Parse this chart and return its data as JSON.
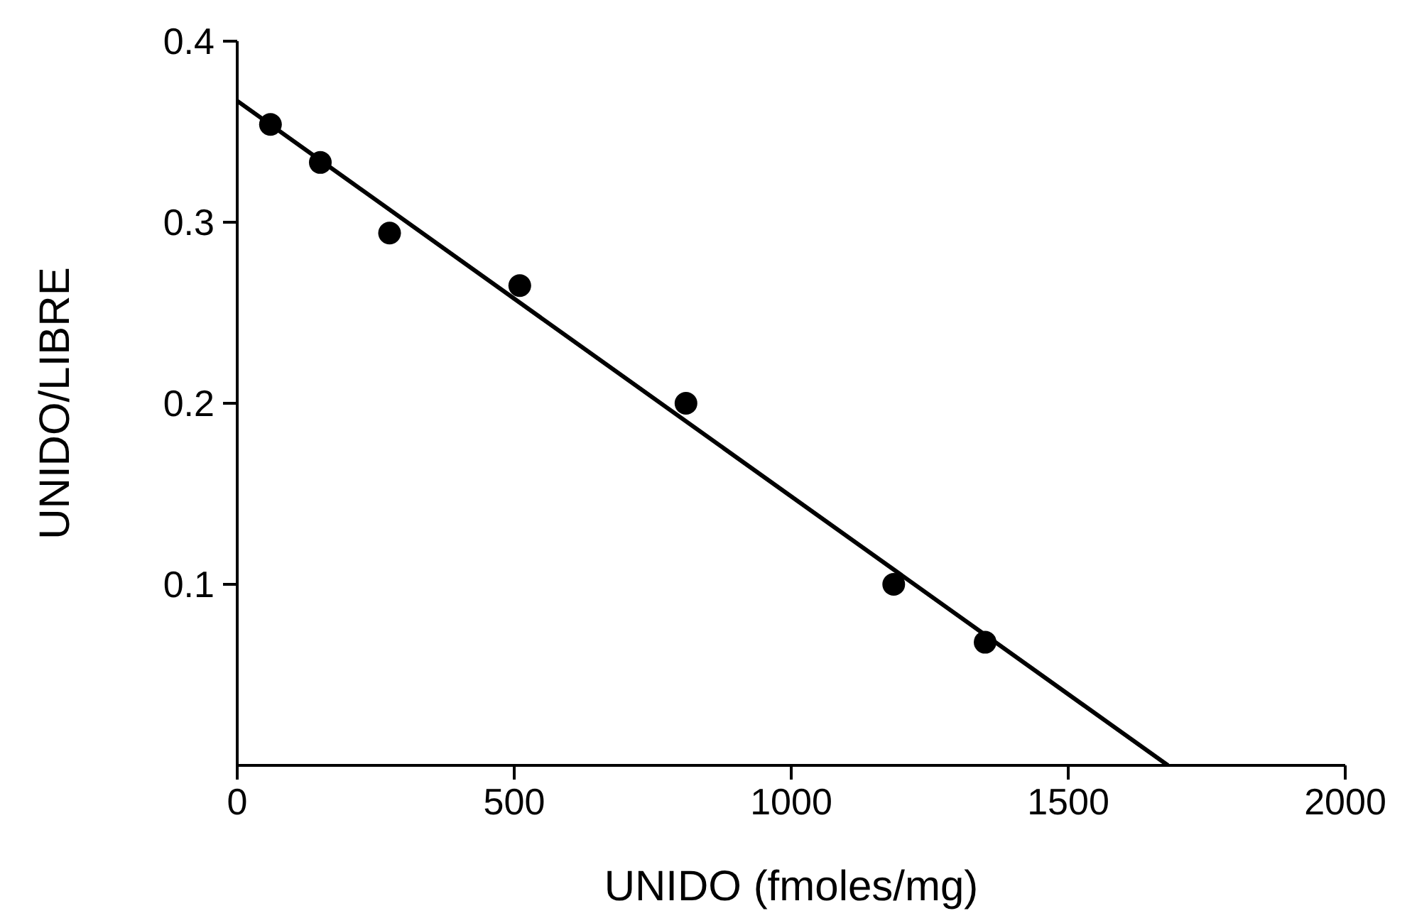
{
  "chart_data": {
    "type": "scatter",
    "xlabel": "UNIDO (fmoles/mg)",
    "ylabel": "UNIDO/LIBRE",
    "x": [
      60,
      150,
      275,
      510,
      810,
      1185,
      1350
    ],
    "series": [
      {
        "color": "#000000",
        "values": [
          0.354,
          0.333,
          0.294,
          0.265,
          0.2,
          0.1,
          0.068
        ]
      },
      {
        "type": "line",
        "color": "#000000",
        "x": [
          0,
          1680
        ],
        "values": [
          0.367,
          0
        ],
        "marker": "none"
      }
    ],
    "xlim": [
      0,
      2000
    ],
    "xticks": [
      0,
      500,
      1000,
      1500,
      2000
    ],
    "ylim": [
      0,
      0.4
    ],
    "yticks": [
      0.1,
      0.2,
      0.3,
      0.4
    ],
    "grid": false,
    "legend": false,
    "marker": "circle",
    "line_style": "solid"
  }
}
